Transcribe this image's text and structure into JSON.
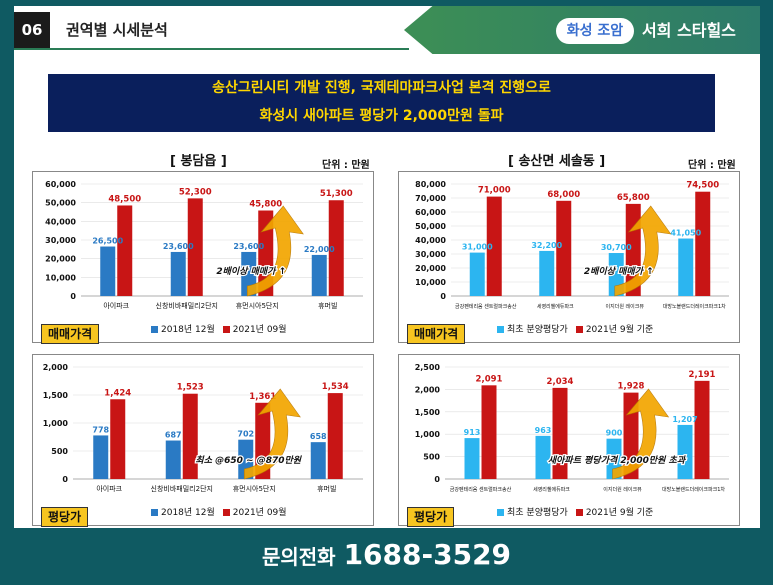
{
  "header": {
    "number": "06",
    "title": "권역별 시세분석",
    "badge": "화성 조암",
    "brand": "서희 스타힐스"
  },
  "banner": {
    "line1": "송산그린시티 개발 진행, 국제테마파크사업 본격 진행으로",
    "line2": "화성시 새아파트 평당가 2,000만원 돌파"
  },
  "panels": {
    "left_title": "[ 봉담읍 ]",
    "right_title": "[ 송산면 세솔동 ]",
    "unit": "단위 : 만원",
    "tag_price": "매매가격",
    "tag_pyeong": "평당가"
  },
  "colors": {
    "series_a_left": "#2a7ac4",
    "series_b": "#c81515",
    "series_a_right": "#2cb5f0",
    "arrow": "#f2a600",
    "footer_bg": "#0f5a62"
  },
  "chart_data": [
    {
      "type": "bar",
      "categories": [
        "아이파크",
        "신창비바패밀리2단지",
        "휴먼시아5단지",
        "휴머빌"
      ],
      "series": [
        {
          "name": "2018년 12월",
          "values": [
            26500,
            23600,
            23600,
            22000
          ]
        },
        {
          "name": "2021년 09월",
          "values": [
            48500,
            52300,
            45800,
            51300
          ]
        }
      ],
      "ylim": [
        0,
        60000
      ],
      "yticks": [
        "0",
        "10,000",
        "20,000",
        "30,000",
        "40,000",
        "50,000",
        "60,000"
      ],
      "labels_a": [
        "26,500",
        "23,600",
        "23,600",
        "22,000"
      ],
      "labels_b": [
        "48,500",
        "52,300",
        "45,800",
        "51,300"
      ],
      "annotation": "2배이상 매매가 ↑"
    },
    {
      "type": "bar",
      "categories": [
        "금강펜테리움 센트럴파크송산",
        "세영리첼에듀파크",
        "이지더원 레이크뷰",
        "대방노블랜드더레이크파크1차"
      ],
      "series": [
        {
          "name": "최초 분양평당가",
          "values": [
            31000,
            32200,
            30700,
            41050
          ]
        },
        {
          "name": "2021년 9월 기준",
          "values": [
            71000,
            68000,
            65800,
            74500
          ]
        }
      ],
      "ylim": [
        0,
        80000
      ],
      "yticks": [
        "0",
        "10,000",
        "20,000",
        "30,000",
        "40,000",
        "50,000",
        "60,000",
        "70,000",
        "80,000"
      ],
      "labels_a": [
        "31,000",
        "32,200",
        "30,700",
        "41,050"
      ],
      "labels_b": [
        "71,000",
        "68,000",
        "65,800",
        "74,500"
      ],
      "annotation": "2배이상 매매가 ↑"
    },
    {
      "type": "bar",
      "categories": [
        "아이파크",
        "신창비바패밀리2단지",
        "휴먼시아5단지",
        "휴머빌"
      ],
      "series": [
        {
          "name": "2018년 12월",
          "values": [
            778,
            687,
            702,
            658
          ]
        },
        {
          "name": "2021년 09월",
          "values": [
            1424,
            1523,
            1361,
            1534
          ]
        }
      ],
      "ylim": [
        0,
        2000
      ],
      "yticks": [
        "0",
        "500",
        "1,000",
        "1,500",
        "2,000"
      ],
      "labels_a": [
        "778",
        "687",
        "702",
        "658"
      ],
      "labels_b": [
        "1,424",
        "1,523",
        "1,361",
        "1,534"
      ],
      "annotation": "최소 @650 ~ @870만원"
    },
    {
      "type": "bar",
      "categories": [
        "금강펜테리움 센트럴파크송산",
        "세영리첼에듀파크",
        "이지더원 레이크뷰",
        "대방노블랜드더레이크파크1차"
      ],
      "series": [
        {
          "name": "최초 분양평당가",
          "values": [
            913,
            963,
            900,
            1207
          ]
        },
        {
          "name": "2021년 9월 기준",
          "values": [
            2091,
            2034,
            1928,
            2191
          ]
        }
      ],
      "ylim": [
        0,
        2500
      ],
      "yticks": [
        "0",
        "500",
        "1,000",
        "1,500",
        "2,000",
        "2,500"
      ],
      "labels_a": [
        "913",
        "963",
        "900",
        "1,207"
      ],
      "labels_b": [
        "2,091",
        "2,034",
        "1,928",
        "2,191"
      ],
      "annotation": "새아파트 평당가격 2,000만원 초과"
    }
  ],
  "footer": {
    "label": "문의전화",
    "phone": "1688-3529"
  }
}
